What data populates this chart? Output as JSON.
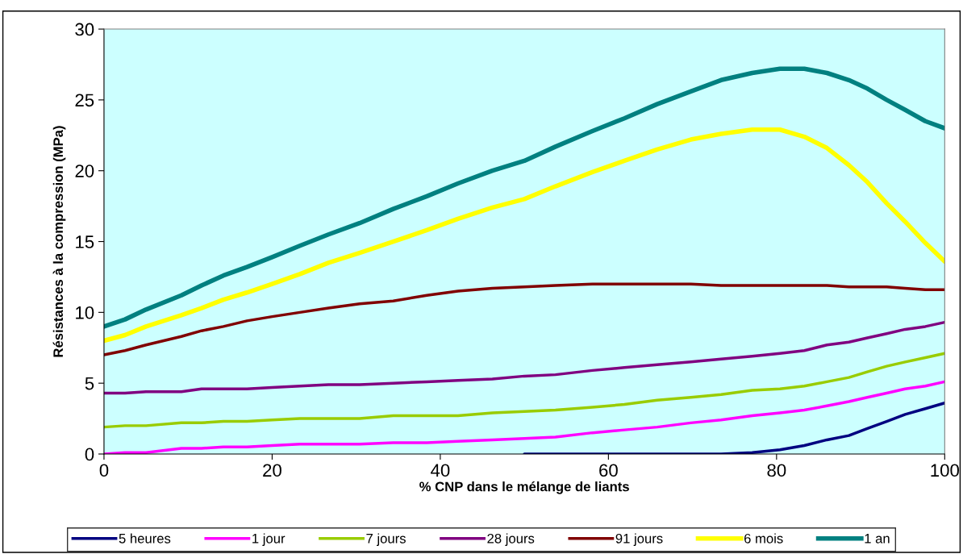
{
  "chart_data": {
    "type": "line",
    "xlabel": "% CNP dans le mélange de liants",
    "ylabel": "Résistances à la compression (MPa)",
    "x": [
      0,
      2.5,
      5,
      9.2,
      11.6,
      14.2,
      17,
      20,
      23.3,
      26.7,
      30.4,
      34.4,
      38.4,
      42.1,
      46.2,
      50,
      53.7,
      58.1,
      61.9,
      65.8,
      69.8,
      73.4,
      77.1,
      80.4,
      83.3,
      86,
      88.6,
      90.8,
      93.1,
      95.3,
      97.7,
      100
    ],
    "series": [
      {
        "name": "5 heures",
        "color": "#000080",
        "values": [
          null,
          null,
          null,
          null,
          null,
          null,
          null,
          null,
          null,
          null,
          null,
          null,
          null,
          null,
          null,
          0,
          0,
          0,
          0,
          0,
          0,
          0,
          0.1,
          0.3,
          0.6,
          1.0,
          1.3,
          1.8,
          2.3,
          2.8,
          3.2,
          3.6
        ]
      },
      {
        "name": "1 jour",
        "color": "#ff00ff",
        "values": [
          0,
          0.1,
          0.1,
          0.4,
          0.4,
          0.5,
          0.5,
          0.6,
          0.7,
          0.7,
          0.7,
          0.8,
          0.8,
          0.9,
          1.0,
          1.1,
          1.2,
          1.5,
          1.7,
          1.9,
          2.2,
          2.4,
          2.7,
          2.9,
          3.1,
          3.4,
          3.7,
          4.0,
          4.3,
          4.6,
          4.8,
          5.1
        ]
      },
      {
        "name": "7 jours",
        "color": "#99cc00",
        "values": [
          1.9,
          2.0,
          2.0,
          2.2,
          2.2,
          2.3,
          2.3,
          2.4,
          2.5,
          2.5,
          2.5,
          2.7,
          2.7,
          2.7,
          2.9,
          3.0,
          3.1,
          3.3,
          3.5,
          3.8,
          4.0,
          4.2,
          4.5,
          4.6,
          4.8,
          5.1,
          5.4,
          5.8,
          6.2,
          6.5,
          6.8,
          7.1
        ]
      },
      {
        "name": "28 jours",
        "color": "#800080",
        "values": [
          4.3,
          4.3,
          4.4,
          4.4,
          4.6,
          4.6,
          4.6,
          4.7,
          4.8,
          4.9,
          4.9,
          5.0,
          5.1,
          5.2,
          5.3,
          5.5,
          5.6,
          5.9,
          6.1,
          6.3,
          6.5,
          6.7,
          6.9,
          7.1,
          7.3,
          7.7,
          7.9,
          8.2,
          8.5,
          8.8,
          9.0,
          9.3
        ]
      },
      {
        "name": "91 jours",
        "color": "#800000",
        "values": [
          7.0,
          7.3,
          7.7,
          8.3,
          8.7,
          9.0,
          9.4,
          9.7,
          10.0,
          10.3,
          10.6,
          10.8,
          11.2,
          11.5,
          11.7,
          11.8,
          11.9,
          12.0,
          12.0,
          12.0,
          12.0,
          11.9,
          11.9,
          11.9,
          11.9,
          11.9,
          11.8,
          11.8,
          11.8,
          11.7,
          11.6,
          11.6
        ]
      },
      {
        "name": "6 mois",
        "color": "#ffff00",
        "values": [
          8.0,
          8.4,
          9.0,
          9.8,
          10.3,
          10.9,
          11.4,
          12.0,
          12.7,
          13.5,
          14.2,
          15.0,
          15.8,
          16.6,
          17.4,
          18.0,
          18.9,
          19.9,
          20.7,
          21.5,
          22.2,
          22.6,
          22.9,
          22.9,
          22.4,
          21.6,
          20.4,
          19.2,
          17.7,
          16.4,
          14.9,
          13.6
        ]
      },
      {
        "name": "1 an",
        "color": "#008080",
        "values": [
          9.0,
          9.5,
          10.2,
          11.2,
          11.9,
          12.6,
          13.2,
          13.9,
          14.7,
          15.5,
          16.3,
          17.3,
          18.2,
          19.1,
          20.0,
          20.7,
          21.7,
          22.8,
          23.7,
          24.7,
          25.6,
          26.4,
          26.9,
          27.2,
          27.2,
          26.9,
          26.4,
          25.8,
          25.0,
          24.3,
          23.5,
          23.0
        ]
      }
    ],
    "xlim": [
      0,
      100
    ],
    "xticks": [
      0,
      20,
      40,
      60,
      80,
      100
    ],
    "ylim": [
      0,
      30
    ],
    "yticks": [
      0,
      5,
      10,
      15,
      20,
      25,
      30
    ],
    "grid": false,
    "legend": "bottom",
    "marker": "none",
    "line_style": "solid"
  }
}
